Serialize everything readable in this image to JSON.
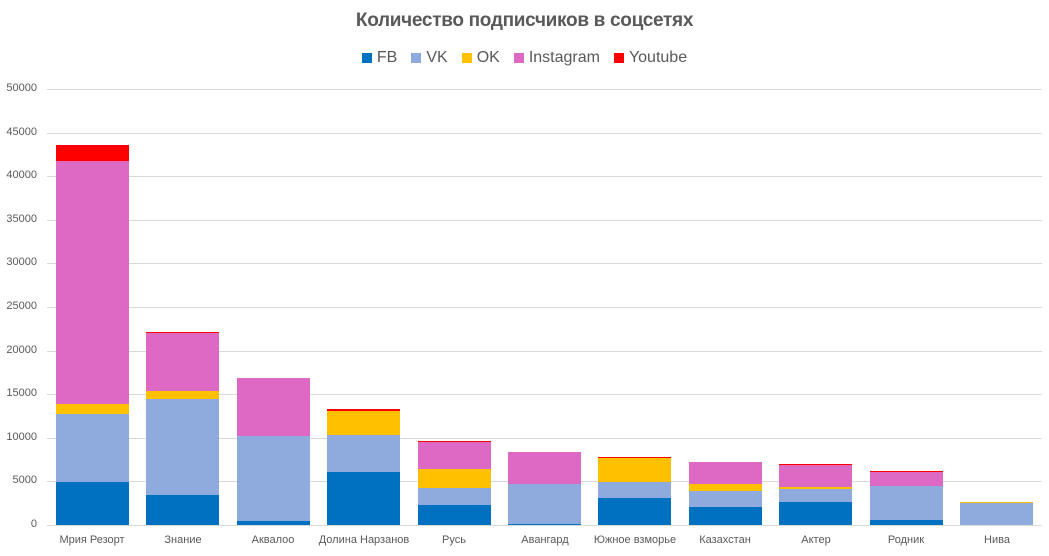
{
  "chart_data": {
    "type": "bar",
    "stacked": true,
    "title": "Количество подписчиков в соцсетях",
    "xlabel": "",
    "ylabel": "",
    "ylim": [
      0,
      50000
    ],
    "yticks": [
      0,
      5000,
      10000,
      15000,
      20000,
      25000,
      30000,
      35000,
      40000,
      45000,
      50000
    ],
    "grid": true,
    "legend_position": "top",
    "categories": [
      "Мрия Резорт",
      "Знание",
      "Аквалоо",
      "Долина Нарзанов",
      "Русь",
      "Авангард",
      "Южное взморье",
      "Казахстан",
      "Актер",
      "Родник",
      "Нива"
    ],
    "series": [
      {
        "name": "FB",
        "color": "#0070C0",
        "values": [
          4900,
          3450,
          450,
          6100,
          2300,
          150,
          3100,
          2050,
          2650,
          550,
          0
        ]
      },
      {
        "name": "VK",
        "color": "#8FAADC",
        "values": [
          7800,
          11000,
          9750,
          4200,
          1950,
          4550,
          1850,
          1850,
          1500,
          3950,
          2550
        ]
      },
      {
        "name": "OK",
        "color": "#FFC000",
        "values": [
          1200,
          950,
          0,
          2800,
          2150,
          0,
          2750,
          800,
          250,
          0,
          100
        ]
      },
      {
        "name": "Instagram",
        "color": "#DD69C5",
        "values": [
          27800,
          6600,
          6650,
          0,
          3150,
          3650,
          0,
          2500,
          2550,
          1600,
          0
        ]
      },
      {
        "name": "Youtube",
        "color": "#FF0000",
        "values": [
          1900,
          150,
          0,
          200,
          100,
          0,
          150,
          0,
          100,
          100,
          0
        ]
      }
    ]
  }
}
